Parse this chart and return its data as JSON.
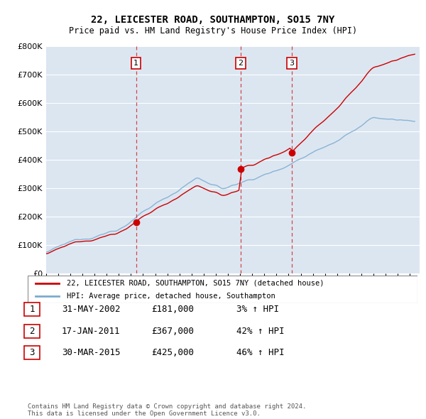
{
  "title": "22, LEICESTER ROAD, SOUTHAMPTON, SO15 7NY",
  "subtitle": "Price paid vs. HM Land Registry's House Price Index (HPI)",
  "legend_label_red": "22, LEICESTER ROAD, SOUTHAMPTON, SO15 7NY (detached house)",
  "legend_label_blue": "HPI: Average price, detached house, Southampton",
  "transactions": [
    {
      "num": 1,
      "date": "31-MAY-2002",
      "price": 181000,
      "pct": "3%",
      "year_x": 2002.42
    },
    {
      "num": 2,
      "date": "17-JAN-2011",
      "price": 367000,
      "pct": "42%",
      "year_x": 2011.05
    },
    {
      "num": 3,
      "date": "30-MAR-2015",
      "price": 425000,
      "pct": "46%",
      "year_x": 2015.25
    }
  ],
  "footnote1": "Contains HM Land Registry data © Crown copyright and database right 2024.",
  "footnote2": "This data is licensed under the Open Government Licence v3.0.",
  "ylim": [
    0,
    800000
  ],
  "xlim_start": 1995.0,
  "xlim_end": 2025.5,
  "plot_bg_color": "#dce6f1",
  "grid_color": "#ffffff",
  "red_color": "#cc0000",
  "blue_color": "#7aabcf",
  "dashed_color": "#cc0000"
}
